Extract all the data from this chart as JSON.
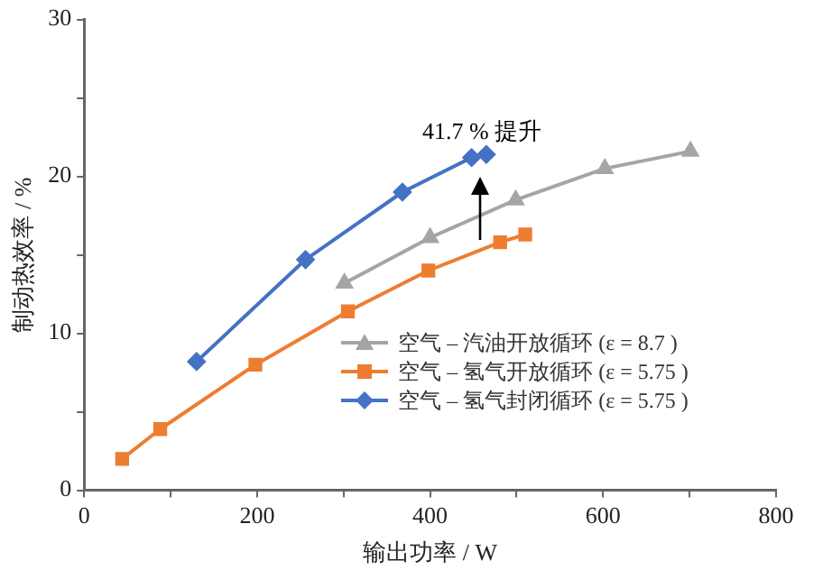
{
  "chart_data": {
    "type": "line",
    "xlabel": "输出功率 / W",
    "ylabel": "制动热效率 / %",
    "xlim": [
      0,
      800
    ],
    "xticks": [
      0,
      {
        "value": 100,
        "label": null
      },
      200,
      {
        "value": 300,
        "label": null
      },
      400,
      {
        "value": 500,
        "label": null
      },
      600,
      {
        "value": 700,
        "label": null
      },
      800
    ],
    "ylim": [
      0,
      30
    ],
    "yticks": [
      0,
      {
        "value": 5,
        "label": null
      },
      10,
      {
        "value": 15,
        "label": null
      },
      20,
      {
        "value": 25,
        "label": null
      },
      30
    ],
    "grid": false,
    "legend": "bottom right",
    "line_style": "solid",
    "series": [
      {
        "name": "空气 – 汽油开放循环 (ε = 8.7 )",
        "color": "#a5a5a5",
        "marker": "triangle",
        "x": [
          301,
          400,
          499,
          602,
          701
        ],
        "values": [
          13.2,
          16.1,
          18.5,
          20.5,
          21.6
        ]
      },
      {
        "name": "空气 – 氢气开放循环 (ε = 5.75 )",
        "color": "#ed7d31",
        "marker": "square",
        "x": [
          44,
          88,
          198,
          305,
          398,
          481,
          510
        ],
        "values": [
          2.0,
          3.9,
          8.0,
          11.4,
          14.0,
          15.8,
          16.3
        ]
      },
      {
        "name": "空气 – 氢气封闭循环 (ε = 5.75 )",
        "color": "#4472c4",
        "marker": "diamond",
        "x": [
          130,
          256,
          368,
          448,
          465
        ],
        "values": [
          8.2,
          14.7,
          19.0,
          21.2,
          21.4
        ]
      }
    ],
    "annotations": [
      "41.7 % 提升"
    ]
  }
}
